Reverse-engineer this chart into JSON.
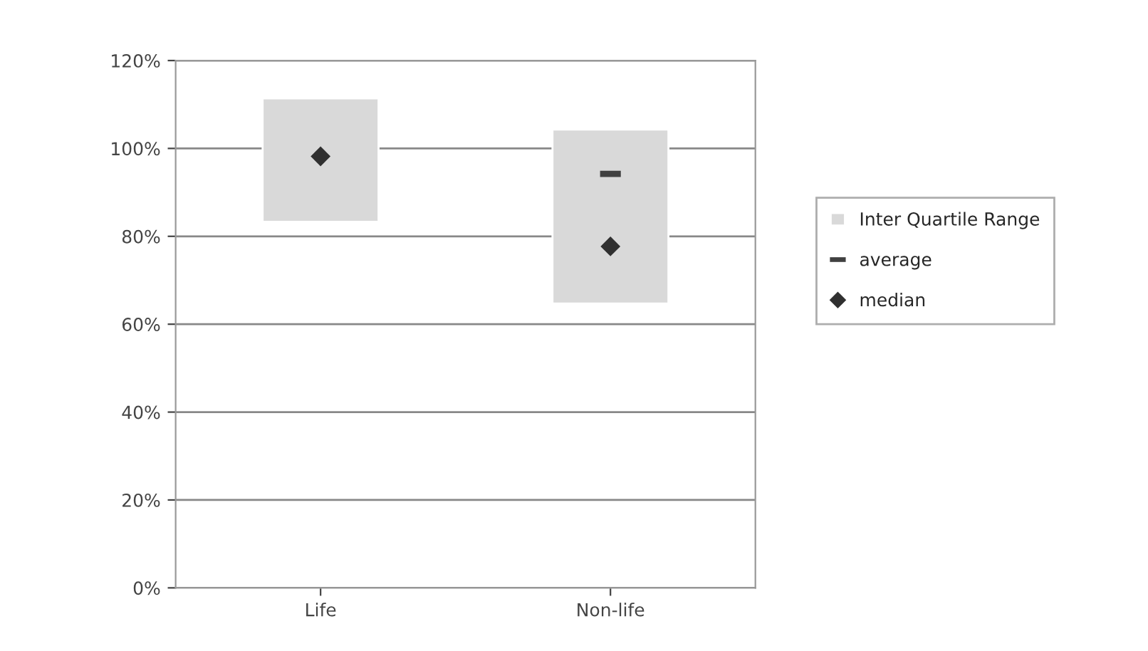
{
  "chart_data": {
    "type": "bar",
    "categories": [
      "Life",
      "Non-life"
    ],
    "series": [
      {
        "name": "Inter Quartile Range",
        "color": "#d9d9d9",
        "values": [
          28.1,
          39.6
        ],
        "base": [
          83.3,
          64.7
        ]
      },
      {
        "name": "average",
        "type": "scatter",
        "marker": "square",
        "color": "#404040",
        "x": [
          "Life",
          "Non-life"
        ],
        "values": [
          null,
          94.2
        ]
      },
      {
        "name": "median",
        "type": "scatter",
        "marker": "diamond",
        "color": "#303030",
        "x": [
          "Life",
          "Non-life"
        ],
        "values": [
          98.2,
          77.7
        ]
      }
    ],
    "ylim": [
      0,
      120
    ],
    "yticks": [
      {
        "value": 0,
        "label": "0%"
      },
      {
        "value": 20,
        "label": "20%"
      },
      {
        "value": 40,
        "label": "40%"
      },
      {
        "value": 60,
        "label": "60%"
      },
      {
        "value": 80,
        "label": "80%"
      },
      {
        "value": 100,
        "label": "100%"
      },
      {
        "value": 120,
        "label": "120%"
      }
    ],
    "grid": "y",
    "legend": "right"
  }
}
